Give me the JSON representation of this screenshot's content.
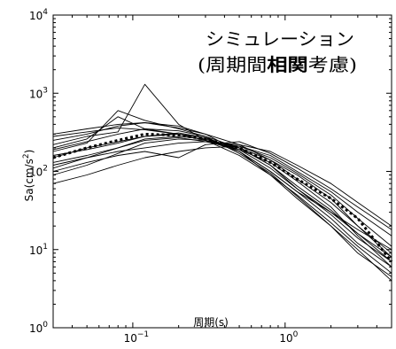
{
  "chart_data": {
    "type": "line",
    "xlabel": "周期(s)",
    "ylabel": "Sa(cm/s2)",
    "ylabel_base": "Sa(cm/s",
    "ylabel_sup": "2",
    "ylabel_tail": ")",
    "xscale": "log",
    "yscale": "log",
    "xlim": [
      0.03,
      5
    ],
    "ylim": [
      1,
      10000
    ],
    "x_ticks": [
      {
        "value": 0.1,
        "base": "10",
        "exp": "−1"
      },
      {
        "value": 1,
        "base": "10",
        "exp": "0"
      }
    ],
    "y_ticks": [
      {
        "value": 1,
        "base": "10",
        "exp": "0"
      },
      {
        "value": 10,
        "base": "10",
        "exp": "1"
      },
      {
        "value": 100,
        "base": "10",
        "exp": "2"
      },
      {
        "value": 1000,
        "base": "10",
        "exp": "3"
      },
      {
        "value": 10000,
        "base": "10",
        "exp": "4"
      }
    ],
    "annotation": {
      "line1": "シミュレーション",
      "line2_prefix": "(周期間",
      "line2_bold": "相関",
      "line2_suffix": "考慮)"
    },
    "line_color": "#000000",
    "x": [
      0.03,
      0.05,
      0.08,
      0.12,
      0.2,
      0.3,
      0.5,
      0.8,
      1.2,
      2,
      3,
      5
    ],
    "series": [
      {
        "style": "dotted",
        "values": [
          150,
          200,
          250,
          300,
          290,
          260,
          200,
          130,
          80,
          45,
          25,
          7
        ]
      },
      {
        "style": "solid",
        "values": [
          300,
          350,
          400,
          420,
          380,
          300,
          180,
          100,
          55,
          25,
          12,
          6
        ]
      },
      {
        "style": "solid",
        "values": [
          220,
          280,
          320,
          1300,
          400,
          250,
          160,
          90,
          50,
          22,
          11,
          5
        ]
      },
      {
        "style": "solid",
        "values": [
          180,
          230,
          600,
          450,
          350,
          280,
          170,
          95,
          48,
          20,
          10,
          4
        ]
      },
      {
        "style": "solid",
        "values": [
          150,
          200,
          240,
          280,
          300,
          270,
          190,
          110,
          60,
          28,
          14,
          7
        ]
      },
      {
        "style": "solid",
        "values": [
          70,
          90,
          120,
          150,
          180,
          200,
          210,
          160,
          100,
          55,
          30,
          15
        ]
      },
      {
        "style": "solid",
        "values": [
          120,
          150,
          200,
          250,
          270,
          240,
          200,
          140,
          90,
          45,
          20,
          9
        ]
      },
      {
        "style": "solid",
        "values": [
          100,
          130,
          160,
          180,
          150,
          220,
          240,
          170,
          110,
          60,
          35,
          18
        ]
      },
      {
        "style": "solid",
        "values": [
          200,
          260,
          500,
          350,
          300,
          250,
          180,
          100,
          55,
          30,
          18,
          10
        ]
      },
      {
        "style": "solid",
        "values": [
          250,
          300,
          380,
          420,
          360,
          300,
          220,
          140,
          80,
          40,
          20,
          8
        ]
      },
      {
        "style": "solid",
        "values": [
          130,
          160,
          200,
          260,
          280,
          260,
          200,
          120,
          60,
          30,
          16,
          8
        ]
      },
      {
        "style": "solid",
        "values": [
          160,
          190,
          230,
          280,
          310,
          270,
          180,
          90,
          45,
          20,
          9,
          4.5
        ]
      },
      {
        "style": "solid",
        "values": [
          110,
          150,
          180,
          200,
          230,
          240,
          220,
          180,
          120,
          70,
          40,
          20
        ]
      },
      {
        "style": "solid",
        "values": [
          280,
          320,
          360,
          340,
          300,
          250,
          190,
          130,
          75,
          35,
          15,
          6
        ]
      },
      {
        "style": "solid",
        "values": [
          90,
          120,
          170,
          230,
          260,
          250,
          210,
          150,
          95,
          50,
          25,
          11
        ]
      },
      {
        "style": "solid",
        "values": [
          190,
          240,
          300,
          350,
          330,
          280,
          200,
          120,
          65,
          32,
          16,
          7
        ]
      }
    ]
  }
}
